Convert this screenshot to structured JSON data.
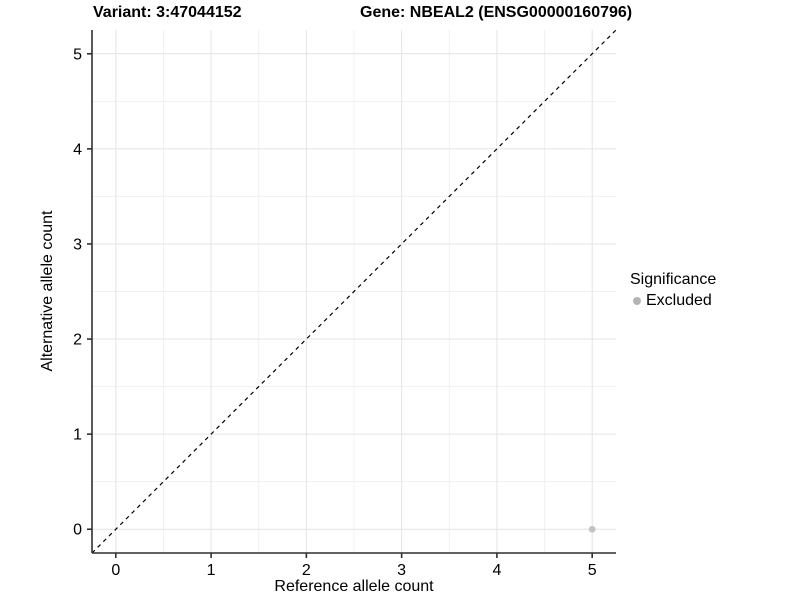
{
  "header": {
    "variant_title": "Variant: 3:47044152",
    "gene_title": "Gene: NBEAL2 (ENSG00000160796)"
  },
  "chart_data": {
    "type": "scatter",
    "xlabel": "Reference allele count",
    "ylabel": "Alternative allele count",
    "xlim": [
      -0.25,
      5.25
    ],
    "ylim": [
      -0.25,
      5.25
    ],
    "xticks": [
      0,
      1,
      2,
      3,
      4,
      5
    ],
    "yticks": [
      0,
      1,
      2,
      3,
      4,
      5
    ],
    "minor_grid_positions": [
      0.5,
      1.5,
      2.5,
      3.5,
      4.5
    ],
    "grid": "on",
    "reference_line": {
      "kind": "identity y=x",
      "slope": 1,
      "intercept": 0,
      "style": "dashed",
      "color": "#000000"
    },
    "series": [
      {
        "name": "Excluded",
        "color": "#bebebe",
        "points": [
          {
            "x": 5,
            "y": 0
          }
        ]
      }
    ],
    "legend": {
      "position": "right",
      "title": "Significance",
      "entries": [
        {
          "label": "Excluded",
          "color": "#b5b5b5"
        }
      ]
    },
    "colors": {
      "grid_major": "#e4e4e4",
      "grid_minor": "#f1f1f1",
      "axis_line": "#2f2f2f",
      "tick_label": "#000000",
      "point_fill": "#c3c3c3"
    }
  }
}
